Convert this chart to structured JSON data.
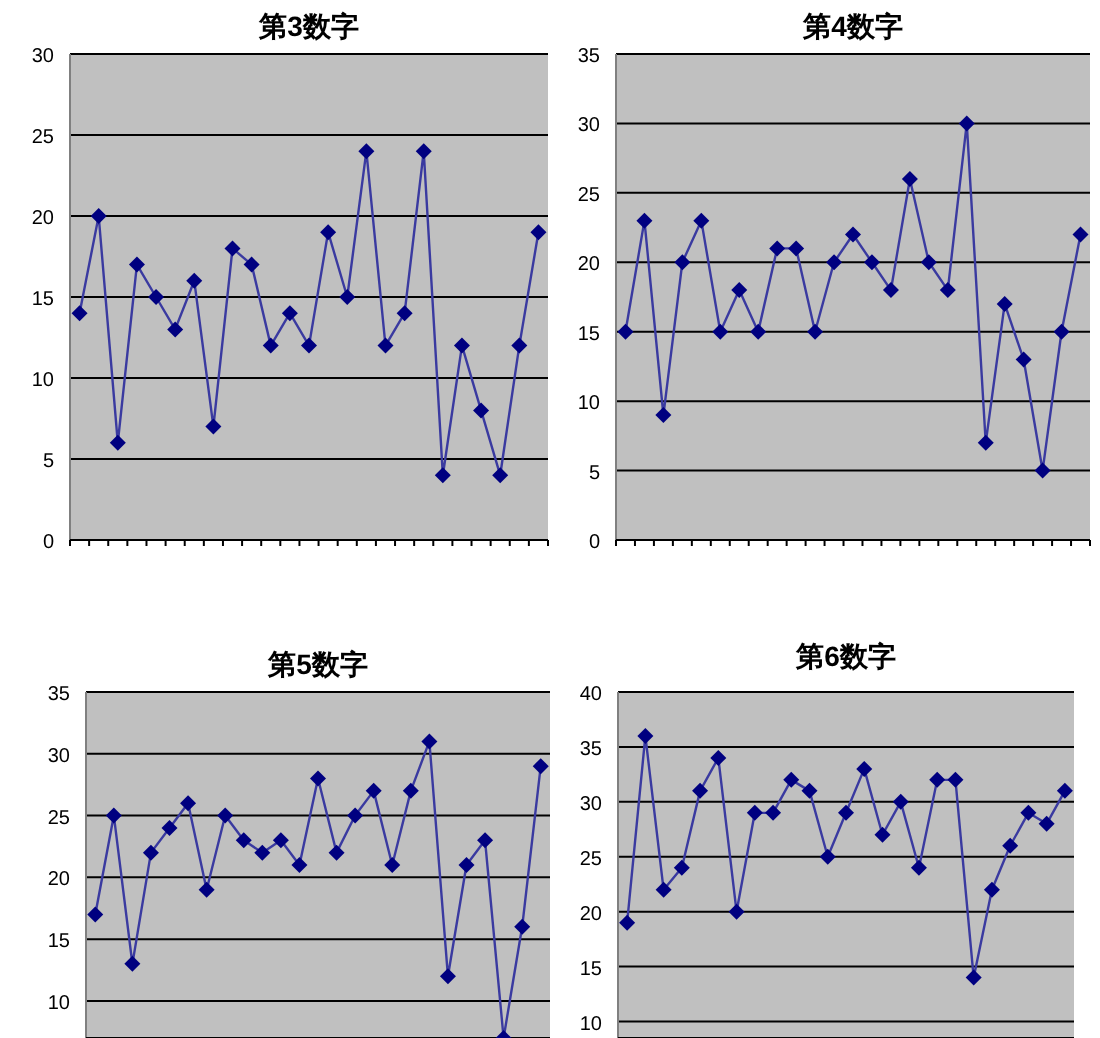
{
  "chart_data": [
    {
      "type": "line",
      "title": "第3数字",
      "categories": [
        null,
        null,
        null,
        null,
        null,
        null,
        null,
        null,
        null,
        null,
        null,
        null,
        null,
        null,
        null,
        null,
        null,
        null,
        null,
        null,
        null,
        null,
        null,
        null,
        null
      ],
      "series": [
        {
          "color": "#000080",
          "values": [
            14,
            20,
            6,
            17,
            15,
            13,
            16,
            7,
            18,
            17,
            12,
            14,
            12,
            19,
            15,
            24,
            12,
            14,
            24,
            4,
            12,
            8,
            4,
            12,
            19
          ]
        }
      ],
      "ylim": [
        0,
        30
      ],
      "yticks": [
        0,
        5,
        10,
        15,
        20,
        25,
        30
      ],
      "grid": "y",
      "marker": "diamond",
      "tick_labels": "y"
    },
    {
      "type": "line",
      "title": "第4数字",
      "categories": [
        null,
        null,
        null,
        null,
        null,
        null,
        null,
        null,
        null,
        null,
        null,
        null,
        null,
        null,
        null,
        null,
        null,
        null,
        null,
        null,
        null,
        null,
        null,
        null,
        null
      ],
      "series": [
        {
          "color": "#000080",
          "values": [
            15,
            23,
            9,
            20,
            23,
            15,
            18,
            15,
            21,
            21,
            15,
            20,
            22,
            20,
            18,
            26,
            20,
            18,
            30,
            7,
            17,
            13,
            5,
            15,
            22
          ]
        }
      ],
      "ylim": [
        0,
        35
      ],
      "yticks": [
        0,
        5,
        10,
        15,
        20,
        25,
        30,
        35
      ],
      "grid": "y",
      "marker": "diamond",
      "tick_labels": "y"
    },
    {
      "type": "line",
      "title": "第5数字",
      "categories": [
        null,
        null,
        null,
        null,
        null,
        null,
        null,
        null,
        null,
        null,
        null,
        null,
        null,
        null,
        null,
        null,
        null,
        null,
        null,
        null,
        null,
        null,
        null,
        null,
        null
      ],
      "series": [
        {
          "color": "#000080",
          "values": [
            17,
            25,
            13,
            22,
            24,
            26,
            19,
            25,
            23,
            22,
            23,
            21,
            28,
            22,
            25,
            27,
            21,
            27,
            31,
            12,
            21,
            23,
            7,
            16,
            29
          ]
        }
      ],
      "ylim": [
        7,
        35
      ],
      "yticks": [
        10,
        15,
        20,
        25,
        30,
        35
      ],
      "grid": "y",
      "marker": "diamond",
      "tick_labels": "y"
    },
    {
      "type": "line",
      "title": "第6数字",
      "categories": [
        null,
        null,
        null,
        null,
        null,
        null,
        null,
        null,
        null,
        null,
        null,
        null,
        null,
        null,
        null,
        null,
        null,
        null,
        null,
        null,
        null,
        null,
        null,
        null,
        null
      ],
      "series": [
        {
          "color": "#000080",
          "values": [
            19,
            36,
            22,
            24,
            31,
            34,
            20,
            29,
            29,
            32,
            31,
            25,
            29,
            33,
            27,
            30,
            24,
            32,
            32,
            14,
            22,
            26,
            29,
            28,
            31
          ]
        }
      ],
      "ylim": [
        8.5,
        40
      ],
      "yticks": [
        10,
        15,
        20,
        25,
        30,
        35,
        40
      ],
      "grid": "y",
      "marker": "diamond",
      "tick_labels": "y"
    }
  ]
}
